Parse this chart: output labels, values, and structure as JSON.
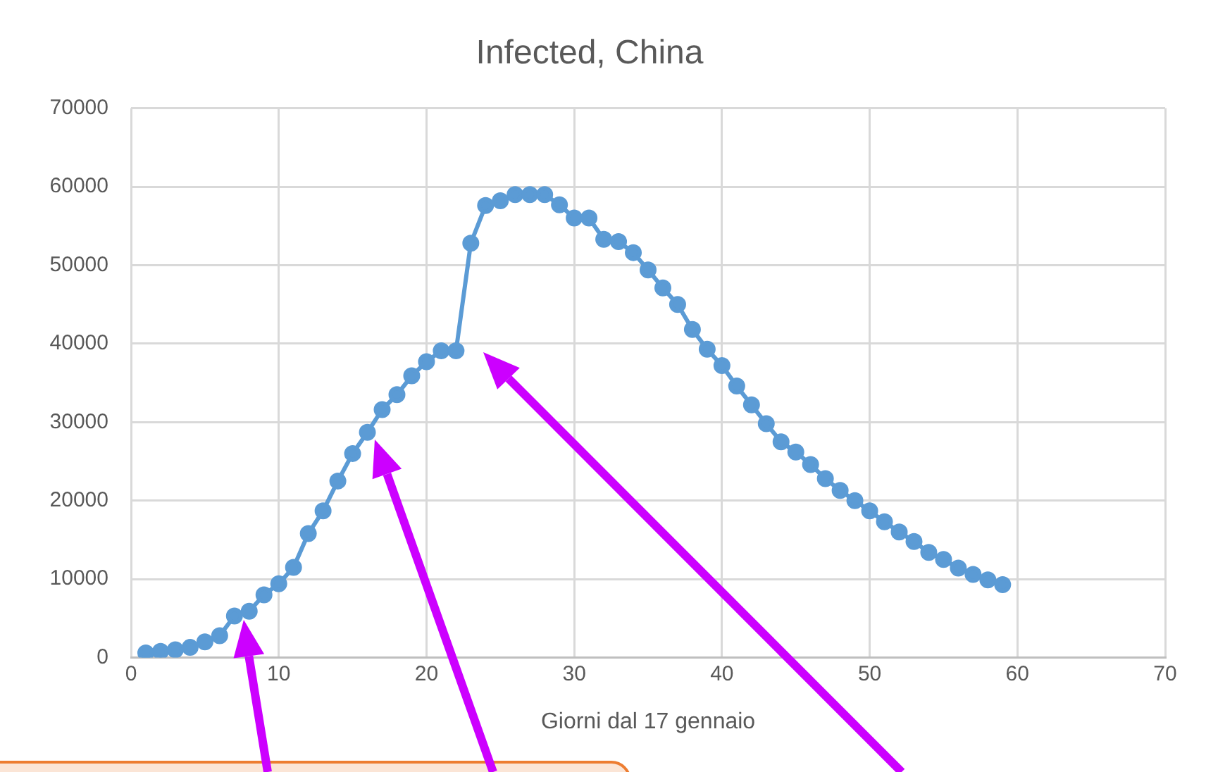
{
  "chart_data": {
    "type": "line",
    "title": "Infected, China",
    "xlabel": "Giorni dal 17 gennaio",
    "x": [
      1,
      2,
      3,
      4,
      5,
      6,
      7,
      8,
      9,
      10,
      11,
      12,
      13,
      14,
      15,
      16,
      17,
      18,
      19,
      20,
      21,
      22,
      23,
      24,
      25,
      26,
      27,
      28,
      29,
      30,
      31,
      32,
      33,
      34,
      35,
      36,
      37,
      38,
      39,
      40,
      41,
      42,
      43,
      44,
      45,
      46,
      47,
      48,
      49,
      50,
      51,
      52,
      53,
      54,
      55,
      56,
      57,
      58,
      59
    ],
    "series": [
      {
        "color": "#5b9bd5",
        "values": [
          600,
          800,
          1000,
          1300,
          2000,
          2800,
          5300,
          5900,
          8000,
          9400,
          11500,
          15800,
          18700,
          22500,
          26000,
          28700,
          31600,
          33500,
          35900,
          37700,
          39100,
          39100,
          52800,
          57600,
          58200,
          59000,
          59000,
          59000,
          57700,
          56000,
          56000,
          53300,
          53000,
          51600,
          49400,
          47100,
          45000,
          41800,
          39300,
          37200,
          34600,
          32200,
          29800,
          27500,
          26200,
          24600,
          22800,
          21300,
          20000,
          18700,
          17300,
          16000,
          14800,
          13400,
          12500,
          11400,
          10600,
          9900,
          9300
        ]
      }
    ],
    "xlim": [
      0,
      70
    ],
    "xticks": [
      0,
      10,
      20,
      30,
      40,
      50,
      60,
      70
    ],
    "ylim": [
      0,
      70000
    ],
    "yticks": [
      0,
      10000,
      20000,
      30000,
      40000,
      50000,
      60000,
      70000
    ],
    "grid": true,
    "legend": false,
    "marker": "circle",
    "line_style": "solid"
  }
}
